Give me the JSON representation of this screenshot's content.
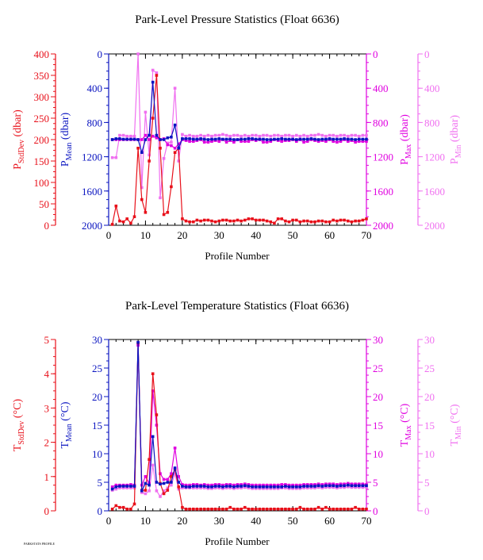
{
  "colors": {
    "stddev": "#e8101a",
    "mean": "#0a14c0",
    "max": "#e000e0",
    "min": "#f070f0",
    "text": "#000000"
  },
  "footer_text": "PARKSTATS PROFILE",
  "chart_data": [
    {
      "type": "line",
      "title": "Park-Level Pressure Statistics (Float 6636)",
      "xlabel": "Profile Number",
      "xlim": [
        0,
        70
      ],
      "xticks": [
        0,
        10,
        20,
        30,
        40,
        50,
        60,
        70
      ],
      "axes": {
        "stddev": {
          "label_main": "P",
          "label_sub": "StdDev",
          "label_unit": " (dbar)",
          "range": [
            0,
            400
          ],
          "inverted": false,
          "ticks": [
            0,
            50,
            100,
            150,
            200,
            250,
            300,
            350,
            400
          ]
        },
        "mean": {
          "label_main": "P",
          "label_sub": "Mean",
          "label_unit": " (dbar)",
          "range": [
            0,
            2000
          ],
          "inverted": true,
          "ticks": [
            0,
            400,
            800,
            1200,
            1600,
            2000
          ]
        },
        "max": {
          "label_main": "P",
          "label_sub": "Max",
          "label_unit": " (dbar)",
          "range": [
            0,
            2000
          ],
          "inverted": true,
          "ticks": [
            0,
            400,
            800,
            1200,
            1600,
            2000
          ]
        },
        "min": {
          "label_main": "P",
          "label_sub": "Min",
          "label_unit": " (dbar)",
          "range": [
            0,
            2000
          ],
          "inverted": true,
          "ticks": [
            0,
            400,
            800,
            1200,
            1600,
            2000
          ]
        }
      },
      "x": [
        1,
        2,
        3,
        4,
        5,
        6,
        7,
        8,
        9,
        10,
        11,
        12,
        13,
        14,
        15,
        16,
        17,
        18,
        19,
        20,
        21,
        22,
        23,
        24,
        25,
        26,
        27,
        28,
        29,
        30,
        31,
        32,
        33,
        34,
        35,
        36,
        37,
        38,
        39,
        40,
        41,
        42,
        43,
        44,
        45,
        46,
        47,
        48,
        49,
        50,
        51,
        52,
        53,
        54,
        55,
        56,
        57,
        58,
        59,
        60,
        61,
        62,
        63,
        64,
        65,
        66,
        67,
        68,
        69,
        70
      ],
      "series": [
        {
          "key": "stddev",
          "values": [
            2,
            45,
            10,
            8,
            15,
            5,
            20,
            180,
            60,
            30,
            150,
            250,
            350,
            180,
            25,
            30,
            90,
            170,
            180,
            15,
            10,
            8,
            8,
            12,
            10,
            12,
            12,
            10,
            8,
            10,
            12,
            12,
            10,
            10,
            12,
            10,
            12,
            15,
            15,
            12,
            12,
            12,
            10,
            8,
            5,
            15,
            15,
            10,
            8,
            12,
            12,
            8,
            10,
            10,
            8,
            8,
            10,
            10,
            8,
            8,
            12,
            10,
            12,
            12,
            10,
            8,
            10,
            10,
            12,
            15
          ]
        },
        {
          "key": "mean",
          "values": [
            1000,
            990,
            990,
            995,
            995,
            995,
            995,
            1000,
            1150,
            1000,
            950,
            330,
            950,
            1000,
            1000,
            980,
            970,
            830,
            1100,
            990,
            990,
            990,
            995,
            995,
            990,
            995,
            1000,
            995,
            995,
            990,
            995,
            995,
            995,
            1000,
            1000,
            995,
            995,
            990,
            990,
            995,
            995,
            995,
            1000,
            1000,
            995,
            995,
            990,
            995,
            995,
            995,
            1000,
            995,
            995,
            995,
            990,
            995,
            1000,
            995,
            995,
            990,
            995,
            995,
            995,
            990,
            995,
            995,
            1000,
            995,
            995,
            995
          ]
        },
        {
          "key": "max",
          "values": [
            1000,
            1000,
            1000,
            1000,
            1000,
            1000,
            1000,
            1000,
            1000,
            950,
            1000,
            960,
            980,
            1000,
            990,
            1060,
            1070,
            1100,
            1050,
            1000,
            1010,
            1020,
            1020,
            1010,
            1000,
            1030,
            1030,
            1020,
            1010,
            1020,
            1000,
            1030,
            1010,
            1030,
            1000,
            1020,
            1020,
            1020,
            1000,
            1010,
            1000,
            1030,
            1030,
            1020,
            1000,
            1010,
            1020,
            1010,
            1010,
            1000,
            1020,
            1000,
            1030,
            1020,
            1000,
            1010,
            1020,
            1010,
            1020,
            1000,
            1020,
            1030,
            1020,
            1000,
            1020,
            1010,
            1030,
            1020,
            1020,
            1020
          ]
        },
        {
          "key": "min",
          "values": [
            1210,
            1210,
            950,
            950,
            960,
            960,
            960,
            0,
            1560,
            680,
            1180,
            190,
            220,
            1680,
            1220,
            1040,
            1030,
            400,
            1250,
            940,
            960,
            950,
            960,
            960,
            950,
            960,
            950,
            960,
            950,
            950,
            940,
            950,
            960,
            950,
            950,
            960,
            950,
            960,
            950,
            950,
            960,
            950,
            950,
            960,
            950,
            950,
            960,
            950,
            950,
            960,
            950,
            960,
            950,
            960,
            950,
            950,
            940,
            950,
            960,
            950,
            950,
            960,
            950,
            950,
            960,
            950,
            950,
            960,
            950,
            950
          ]
        }
      ]
    },
    {
      "type": "line",
      "title": "Park-Level Temperature Statistics (Float 6636)",
      "xlabel": "Profile Number",
      "xlim": [
        0,
        70
      ],
      "xticks": [
        0,
        10,
        20,
        30,
        40,
        50,
        60,
        70
      ],
      "axes": {
        "stddev": {
          "label_main": "T",
          "label_sub": "StdDev",
          "label_unit": " (°C)",
          "range": [
            0,
            5
          ],
          "inverted": false,
          "ticks": [
            0,
            1,
            2,
            3,
            4,
            5
          ]
        },
        "mean": {
          "label_main": "T",
          "label_sub": "Mean",
          "label_unit": " (°C)",
          "range": [
            0,
            30
          ],
          "inverted": false,
          "ticks": [
            0,
            5,
            10,
            15,
            20,
            25,
            30
          ]
        },
        "max": {
          "label_main": "T",
          "label_sub": "Max",
          "label_unit": " (°C)",
          "range": [
            0,
            30
          ],
          "inverted": false,
          "ticks": [
            0,
            5,
            10,
            15,
            20,
            25,
            30
          ]
        },
        "min": {
          "label_main": "T",
          "label_sub": "Min",
          "label_unit": " (°C)",
          "range": [
            0,
            30
          ],
          "inverted": false,
          "ticks": [
            0,
            5,
            10,
            15,
            20,
            25,
            30
          ]
        }
      },
      "x": [
        1,
        2,
        3,
        4,
        5,
        6,
        7,
        8,
        9,
        10,
        11,
        12,
        13,
        14,
        15,
        16,
        17,
        18,
        19,
        20,
        21,
        22,
        23,
        24,
        25,
        26,
        27,
        28,
        29,
        30,
        31,
        32,
        33,
        34,
        35,
        36,
        37,
        38,
        39,
        40,
        41,
        42,
        43,
        44,
        45,
        46,
        47,
        48,
        49,
        50,
        51,
        52,
        53,
        54,
        55,
        56,
        57,
        58,
        59,
        60,
        61,
        62,
        63,
        64,
        65,
        66,
        67,
        68,
        69,
        70
      ],
      "series": [
        {
          "key": "stddev",
          "values": [
            0.05,
            0.15,
            0.1,
            0.1,
            0.05,
            0.05,
            0.2,
            4.9,
            0.6,
            0.6,
            1.5,
            4.0,
            2.8,
            0.8,
            0.5,
            0.6,
            1.0,
            1.2,
            0.7,
            0.1,
            0.05,
            0.05,
            0.05,
            0.05,
            0.05,
            0.05,
            0.05,
            0.05,
            0.05,
            0.05,
            0.05,
            0.05,
            0.1,
            0.05,
            0.05,
            0.05,
            0.1,
            0.05,
            0.05,
            0.05,
            0.05,
            0.05,
            0.05,
            0.05,
            0.05,
            0.05,
            0.05,
            0.05,
            0.05,
            0.05,
            0.05,
            0.1,
            0.05,
            0.05,
            0.05,
            0.05,
            0.1,
            0.05,
            0.1,
            0.05,
            0.05,
            0.05,
            0.05,
            0.05,
            0.05,
            0.05,
            0.1,
            0.05,
            0.05,
            0.05
          ]
        },
        {
          "key": "mean",
          "values": [
            3.8,
            4.2,
            4.3,
            4.3,
            4.3,
            4.3,
            4.3,
            29.5,
            3.5,
            4.8,
            4.5,
            13.0,
            5.0,
            4.7,
            4.8,
            5.0,
            5.0,
            7.5,
            5.0,
            4.3,
            4.2,
            4.2,
            4.3,
            4.3,
            4.3,
            4.3,
            4.2,
            4.2,
            4.3,
            4.3,
            4.2,
            4.3,
            4.3,
            4.2,
            4.3,
            4.3,
            4.4,
            4.3,
            4.2,
            4.2,
            4.2,
            4.2,
            4.2,
            4.2,
            4.2,
            4.2,
            4.2,
            4.3,
            4.2,
            4.2,
            4.2,
            4.2,
            4.3,
            4.3,
            4.3,
            4.3,
            4.4,
            4.3,
            4.4,
            4.4,
            4.4,
            4.3,
            4.4,
            4.4,
            4.5,
            4.4,
            4.4,
            4.4,
            4.4,
            4.4
          ]
        },
        {
          "key": "max",
          "values": [
            4.2,
            4.5,
            4.5,
            4.5,
            4.5,
            4.6,
            4.5,
            29.0,
            4.5,
            6.0,
            4.8,
            21.0,
            15.0,
            6.5,
            5.5,
            5.5,
            6.5,
            11.0,
            6.0,
            4.6,
            4.5,
            4.5,
            4.6,
            4.6,
            4.5,
            4.6,
            4.5,
            4.5,
            4.6,
            4.6,
            4.5,
            4.6,
            4.6,
            4.5,
            4.6,
            4.6,
            4.7,
            4.6,
            4.5,
            4.5,
            4.5,
            4.5,
            4.5,
            4.5,
            4.5,
            4.5,
            4.6,
            4.6,
            4.5,
            4.5,
            4.5,
            4.5,
            4.6,
            4.6,
            4.6,
            4.6,
            4.7,
            4.6,
            4.7,
            4.7,
            4.7,
            4.6,
            4.7,
            4.7,
            4.8,
            4.7,
            4.7,
            4.7,
            4.7,
            4.6
          ]
        },
        {
          "key": "min",
          "values": [
            3.6,
            3.8,
            4.0,
            4.0,
            4.0,
            4.0,
            4.0,
            29.0,
            3.2,
            3.0,
            3.5,
            8.0,
            3.5,
            2.5,
            3.5,
            4.0,
            4.5,
            6.5,
            3.8,
            4.0,
            4.0,
            4.0,
            4.0,
            4.0,
            4.0,
            4.0,
            3.9,
            3.9,
            4.0,
            4.0,
            3.9,
            4.0,
            4.0,
            3.9,
            4.0,
            4.0,
            4.1,
            4.0,
            3.9,
            3.9,
            3.9,
            3.9,
            3.9,
            3.9,
            3.9,
            3.9,
            4.0,
            4.0,
            3.9,
            3.9,
            3.9,
            3.9,
            4.0,
            4.0,
            4.0,
            4.0,
            4.1,
            4.0,
            4.1,
            4.1,
            4.1,
            4.0,
            4.1,
            4.1,
            4.2,
            4.1,
            4.1,
            4.1,
            4.1,
            4.1
          ]
        }
      ]
    }
  ]
}
